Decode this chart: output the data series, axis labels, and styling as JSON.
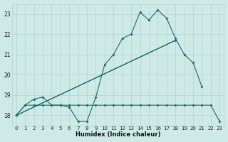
{
  "bg_color": "#ceeae6",
  "grid_color": "#afd4cf",
  "line_color": "#1a6b63",
  "xlabel": "Humidex (Indice chaleur)",
  "xlim": [
    -0.5,
    23.5
  ],
  "ylim": [
    17.5,
    23.5
  ],
  "yticks": [
    18,
    19,
    20,
    21,
    22,
    23
  ],
  "xticks": [
    0,
    1,
    2,
    3,
    4,
    5,
    6,
    7,
    8,
    9,
    10,
    11,
    12,
    13,
    14,
    15,
    16,
    17,
    18,
    19,
    20,
    21,
    22,
    23
  ],
  "series1_x": [
    0,
    1,
    2,
    3,
    4,
    5,
    6,
    7,
    8,
    9,
    10,
    11,
    12,
    13,
    14,
    15,
    16,
    17,
    18,
    19,
    20,
    21
  ],
  "series1_y": [
    18.0,
    18.5,
    18.8,
    18.9,
    18.5,
    18.5,
    18.4,
    17.7,
    17.7,
    18.9,
    20.5,
    21.0,
    21.8,
    22.0,
    23.1,
    22.7,
    23.2,
    22.8,
    21.8,
    21.0,
    20.6,
    19.4
  ],
  "series2_x": [
    0,
    1,
    2,
    3,
    4,
    5,
    6,
    7,
    8,
    9,
    10,
    11,
    12,
    13,
    14,
    15,
    16,
    17,
    18,
    19,
    20,
    21,
    22,
    23
  ],
  "series2_y": [
    18.0,
    18.5,
    18.5,
    18.5,
    18.5,
    18.5,
    18.5,
    18.5,
    18.5,
    18.5,
    18.5,
    18.5,
    18.5,
    18.5,
    18.5,
    18.5,
    18.5,
    18.5,
    18.5,
    18.5,
    18.5,
    18.5,
    18.5,
    17.7
  ],
  "series3_x": [
    0,
    18
  ],
  "series3_y": [
    18.0,
    21.7
  ],
  "series4_x": [
    0,
    18
  ],
  "series4_y": [
    18.0,
    21.7
  ]
}
